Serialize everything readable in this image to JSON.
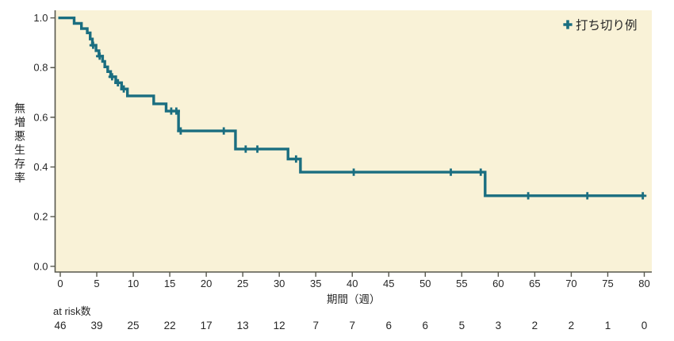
{
  "chart_data": {
    "type": "line",
    "subtype": "kaplan_meier_step",
    "title": "",
    "xlabel": "期間（週）",
    "ylabel": "無増悪生存率",
    "legend_label": "打ち切り例",
    "legend_position": "top-right",
    "grid": false,
    "xlim": [
      0,
      80
    ],
    "ylim": [
      0.0,
      1.0
    ],
    "x_ticks": [
      0,
      5,
      10,
      15,
      20,
      25,
      30,
      35,
      40,
      45,
      50,
      55,
      60,
      65,
      70,
      75,
      80
    ],
    "y_ticks": [
      1.0,
      0.8,
      0.6,
      0.4,
      0.2,
      0.0
    ],
    "colors": {
      "curve": "#1A6E80",
      "plot_background": "#F9F2D7",
      "axis": "#57574D",
      "text": "#262626"
    },
    "series": [
      {
        "name": "無増悪生存率",
        "color": "#1A6E80",
        "steps": [
          [
            0.0,
            1.0
          ],
          [
            1.9,
            0.978
          ],
          [
            2.9,
            0.957
          ],
          [
            3.7,
            0.94
          ],
          [
            4.1,
            0.915
          ],
          [
            4.4,
            0.89
          ],
          [
            4.9,
            0.868
          ],
          [
            5.3,
            0.846
          ],
          [
            5.8,
            0.825
          ],
          [
            6.1,
            0.803
          ],
          [
            6.5,
            0.784
          ],
          [
            6.9,
            0.763
          ],
          [
            7.6,
            0.739
          ],
          [
            8.4,
            0.714
          ],
          [
            9.2,
            0.686
          ],
          [
            12.8,
            0.654
          ],
          [
            14.5,
            0.625
          ],
          [
            16.2,
            0.545
          ],
          [
            24.0,
            0.472
          ],
          [
            31.2,
            0.432
          ],
          [
            32.9,
            0.379
          ],
          [
            58.2,
            0.284
          ]
        ],
        "end_week": 80
      }
    ],
    "censor_marks": [
      [
        4.5,
        0.89
      ],
      [
        5.4,
        0.846
      ],
      [
        7.1,
        0.763
      ],
      [
        7.9,
        0.739
      ],
      [
        8.7,
        0.714
      ],
      [
        15.2,
        0.625
      ],
      [
        15.9,
        0.625
      ],
      [
        16.5,
        0.545
      ],
      [
        22.4,
        0.545
      ],
      [
        25.4,
        0.472
      ],
      [
        27.0,
        0.472
      ],
      [
        32.3,
        0.432
      ],
      [
        40.2,
        0.379
      ],
      [
        53.5,
        0.379
      ],
      [
        57.6,
        0.379
      ],
      [
        64.1,
        0.284
      ],
      [
        72.2,
        0.284
      ],
      [
        79.8,
        0.284
      ]
    ],
    "at_risk": {
      "label": "at risk数",
      "weeks": [
        0,
        5,
        10,
        15,
        20,
        25,
        30,
        35,
        40,
        45,
        50,
        55,
        60,
        65,
        70,
        75,
        80
      ],
      "values": [
        46,
        39,
        25,
        22,
        17,
        13,
        12,
        7,
        7,
        6,
        6,
        5,
        3,
        2,
        2,
        1,
        0
      ]
    }
  }
}
